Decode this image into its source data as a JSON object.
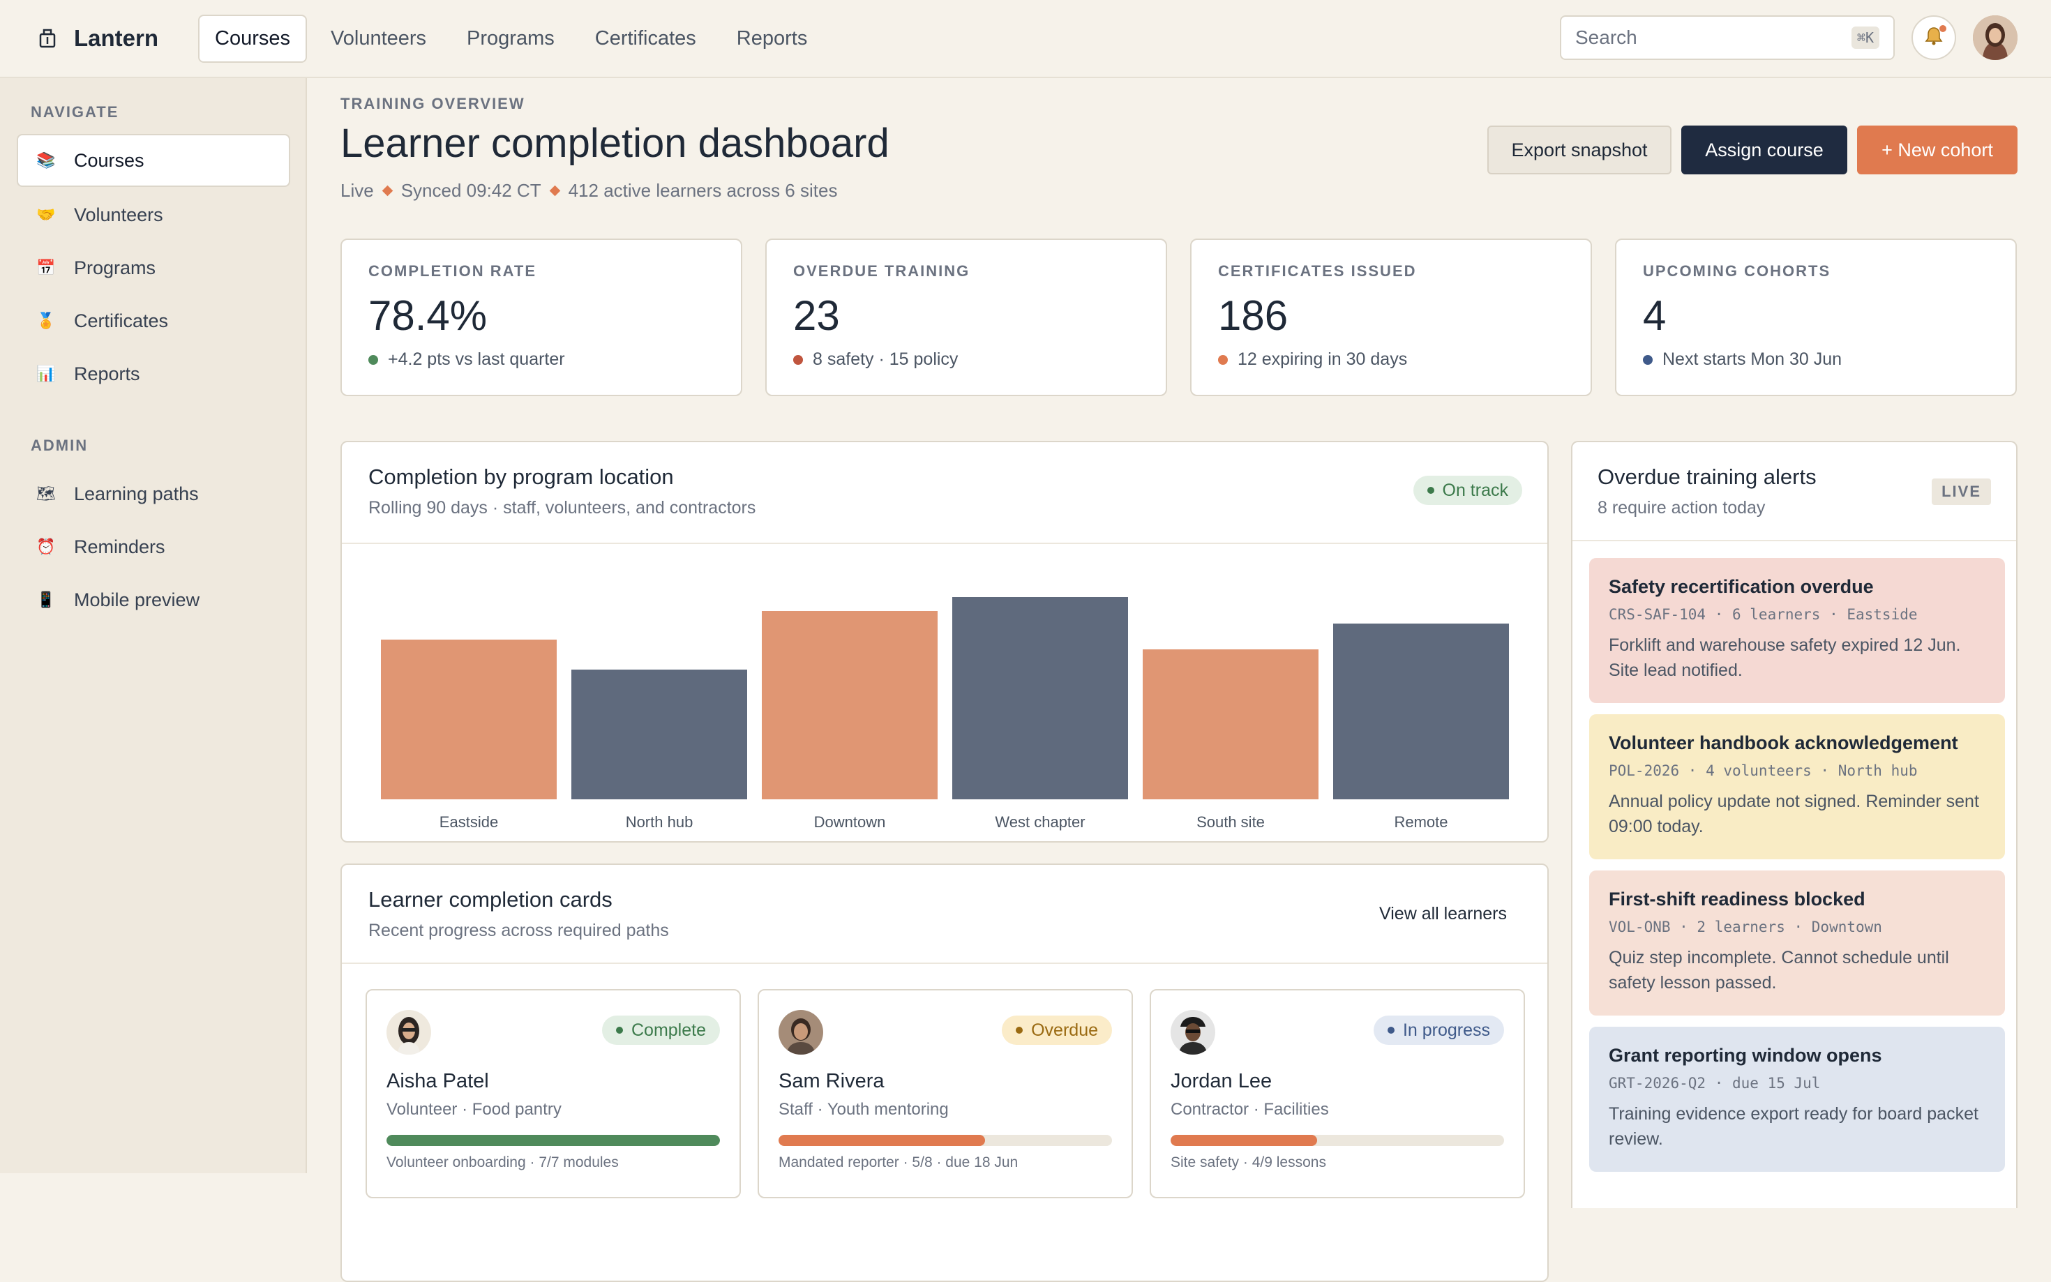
{
  "app": {
    "name": "Lantern"
  },
  "topnav": {
    "items": [
      {
        "label": "Courses",
        "active": true
      },
      {
        "label": "Volunteers"
      },
      {
        "label": "Programs"
      },
      {
        "label": "Certificates"
      },
      {
        "label": "Reports"
      }
    ],
    "search_placeholder": "Search",
    "search_shortcut": "⌘K"
  },
  "sidebar": {
    "navigate_heading": "NAVIGATE",
    "navigate_items": [
      {
        "label": "Courses",
        "icon": "books-icon",
        "active": true
      },
      {
        "label": "Volunteers",
        "icon": "handshake-icon"
      },
      {
        "label": "Programs",
        "icon": "calendar-icon"
      },
      {
        "label": "Certificates",
        "icon": "medal-icon"
      },
      {
        "label": "Reports",
        "icon": "bar-chart-icon"
      }
    ],
    "admin_heading": "ADMIN",
    "admin_items": [
      {
        "label": "Learning paths",
        "icon": "map-icon"
      },
      {
        "label": "Reminders",
        "icon": "alarm-clock-icon"
      },
      {
        "label": "Mobile preview",
        "icon": "mobile-phone-icon"
      }
    ]
  },
  "header": {
    "eyebrow": "TRAINING OVERVIEW",
    "title": "Learner completion dashboard",
    "status": "Live",
    "synced": "Synced 09:42 CT",
    "learners": "412 active learners across 6 sites",
    "buttons": {
      "export": "Export snapshot",
      "assign": "Assign course",
      "new_cohort": "+ New cohort"
    }
  },
  "stats": [
    {
      "label": "COMPLETION RATE",
      "value": "78.4%",
      "note": "+4.2 pts vs last quarter",
      "dot_color": "#4f8a5b"
    },
    {
      "label": "OVERDUE TRAINING",
      "value": "23",
      "note": "8 safety · 15 policy",
      "dot_color": "#c0553e"
    },
    {
      "label": "CERTIFICATES ISSUED",
      "value": "186",
      "note": "12 expiring in 30 days",
      "dot_color": "#e07a4f"
    },
    {
      "label": "UPCOMING COHORTS",
      "value": "4",
      "note": "Next starts Mon 30 Jun",
      "dot_color": "#3f5a8a"
    }
  ],
  "completion_panel": {
    "title": "Completion by program location",
    "subtitle": "Rolling 90 days · staff, volunteers, and contractors",
    "badge": "On track"
  },
  "chart_data": {
    "type": "bar",
    "categories": [
      "Eastside",
      "North hub",
      "Downtown",
      "West chapter",
      "South site",
      "Remote"
    ],
    "values": [
      79,
      64,
      93,
      100,
      74,
      87
    ],
    "colors": [
      "#e09673",
      "#5f6a7d",
      "#e09673",
      "#5f6a7d",
      "#e09673",
      "#5f6a7d"
    ],
    "ylim": [
      0,
      100
    ],
    "grid": false
  },
  "learner_panel": {
    "title": "Learner completion cards",
    "subtitle": "Recent progress across required paths",
    "view_all": "View all learners",
    "cards": [
      {
        "name": "Aisha Patel",
        "role": "Volunteer · Food pantry",
        "status": "Complete",
        "progress": 1.0,
        "foot": "Volunteer onboarding · 7/7 modules",
        "bar_color": "#4f8a5b",
        "pill_bg": "#e3efe4",
        "pill_fg": "#3c7a4b"
      },
      {
        "name": "Sam Rivera",
        "role": "Staff · Youth mentoring",
        "status": "Overdue",
        "progress": 0.62,
        "foot": "Mandated reporter · 5/8 · due 18 Jun",
        "bar_color": "#e07a4f",
        "pill_bg": "#fbecc9",
        "pill_fg": "#9a6a12"
      },
      {
        "name": "Jordan Lee",
        "role": "Contractor · Facilities",
        "status": "In progress",
        "progress": 0.44,
        "foot": "Site safety · 4/9 lessons",
        "bar_color": "#e07a4f",
        "pill_bg": "#e3e9f3",
        "pill_fg": "#3f5a8a"
      }
    ]
  },
  "alerts_panel": {
    "title": "Overdue training alerts",
    "subtitle": "8 require action today",
    "badge": "LIVE",
    "alerts": [
      {
        "title": "Safety recertification overdue",
        "meta": "CRS-SAF-104 · 6 learners · Eastside",
        "body": "Forklift and warehouse safety expired 12 Jun. Site lead notified.",
        "bg": "#f5d9d3"
      },
      {
        "title": "Volunteer handbook acknowledgement",
        "meta": "POL-2026 · 4 volunteers · North hub",
        "body": "Annual policy update not signed. Reminder sent 09:00 today.",
        "bg": "#f9ecc5"
      },
      {
        "title": "First-shift readiness blocked",
        "meta": "VOL-ONB · 2 learners · Downtown",
        "body": "Quiz step incomplete. Cannot schedule until safety lesson passed.",
        "bg": "#f6e0d6"
      },
      {
        "title": "Grant reporting window opens",
        "meta": "GRT-2026-Q2 · due 15 Jul",
        "body": "Training evidence export ready for board packet review.",
        "bg": "#dfe5ef"
      }
    ]
  }
}
